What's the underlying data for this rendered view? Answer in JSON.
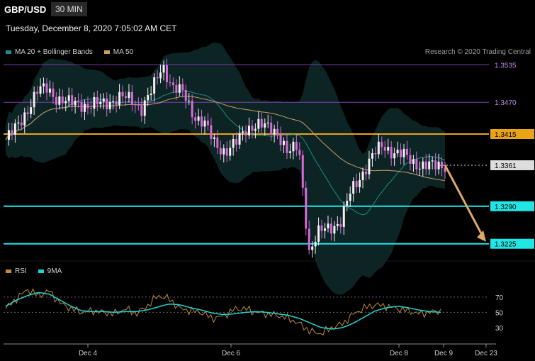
{
  "header": {
    "symbol": "GBP/USD",
    "timeframe": "30 MIN"
  },
  "timestamp": "Tuesday, December 8, 2020 7:05:02 AM CET",
  "credit": "Research © 2020 Trading Central",
  "colors": {
    "ma20": "#1f8a8a",
    "ma50": "#c9a06a",
    "rsi": "#c08a3a",
    "rsi9ma": "#22d3d3",
    "up": "#f2f2f2",
    "down": "#d86ad8",
    "level_purple": "#7a3fb0",
    "level_orange": "#e8a317",
    "level_cyan": "#22e6e6",
    "arrow": "#e0a868"
  },
  "chart_data": [
    {
      "type": "candlestick",
      "legend": [
        {
          "label": "MA 20 + Bollinger Bands",
          "color": "#1f8a8a"
        },
        {
          "label": "MA 50",
          "color": "#c9a06a"
        }
      ],
      "ylim": [
        1.3205,
        1.3555
      ],
      "x_ticks": [
        "Dec 4",
        "Dec 6",
        "Dec 8",
        "Dec 9",
        "Dec 23"
      ],
      "levels": [
        {
          "value": 1.3535,
          "label": "1.3535",
          "color": "#7a3fb0",
          "style": "line"
        },
        {
          "value": 1.347,
          "label": "1.3470",
          "color": "#7a3fb0",
          "style": "line"
        },
        {
          "value": 1.3415,
          "label": "1.3415",
          "color": "#e8a317",
          "style": "thick"
        },
        {
          "value": 1.3361,
          "label": "1.3361",
          "color": "#dddddd",
          "style": "dotted"
        },
        {
          "value": 1.329,
          "label": "1.3290",
          "color": "#22e6e6",
          "style": "thick"
        },
        {
          "value": 1.3225,
          "label": "1.3225",
          "color": "#22e6e6",
          "style": "thick"
        }
      ],
      "price_path": [
        1.3405,
        1.3425,
        1.3455,
        1.3488,
        1.3495,
        1.3475,
        1.3468,
        1.347,
        1.3462,
        1.3468,
        1.3472,
        1.3478,
        1.3475,
        1.346,
        1.349,
        1.3535,
        1.3495,
        1.3485,
        1.3448,
        1.3432,
        1.3398,
        1.3385,
        1.3398,
        1.3425,
        1.3432,
        1.3425,
        1.342,
        1.338,
        1.3395,
        1.3212,
        1.3245,
        1.3255,
        1.3262,
        1.3315,
        1.3345,
        1.3375,
        1.3395,
        1.3385,
        1.3378,
        1.3365,
        1.3362,
        1.3358,
        1.3361
      ],
      "forecast": {
        "from": 1.3361,
        "to": 1.3225
      }
    },
    {
      "type": "line",
      "legend": [
        {
          "label": "RSI",
          "color": "#c08a3a"
        },
        {
          "label": "9MA",
          "color": "#22d3d3"
        }
      ],
      "ylim": [
        15,
        95
      ],
      "y_ticks": [
        "70",
        "50",
        "30"
      ],
      "series": [
        {
          "name": "RSI",
          "values": [
            55,
            68,
            80,
            72,
            78,
            62,
            55,
            50,
            52,
            50,
            48,
            55,
            48,
            58,
            72,
            68,
            55,
            52,
            50,
            42,
            45,
            54,
            55,
            50,
            48,
            46,
            42,
            35,
            25,
            22,
            30,
            35,
            48,
            56,
            60,
            58,
            55,
            52,
            48,
            50,
            52
          ]
        },
        {
          "name": "9MA",
          "values": [
            58,
            66,
            72,
            76,
            74,
            66,
            58,
            52,
            51,
            51,
            50,
            51,
            51,
            53,
            57,
            61,
            60,
            56,
            53,
            49,
            47,
            48,
            50,
            51,
            50,
            48,
            46,
            42,
            36,
            30,
            28,
            30,
            36,
            44,
            52,
            56,
            58,
            56,
            53,
            51,
            50
          ]
        }
      ]
    }
  ]
}
